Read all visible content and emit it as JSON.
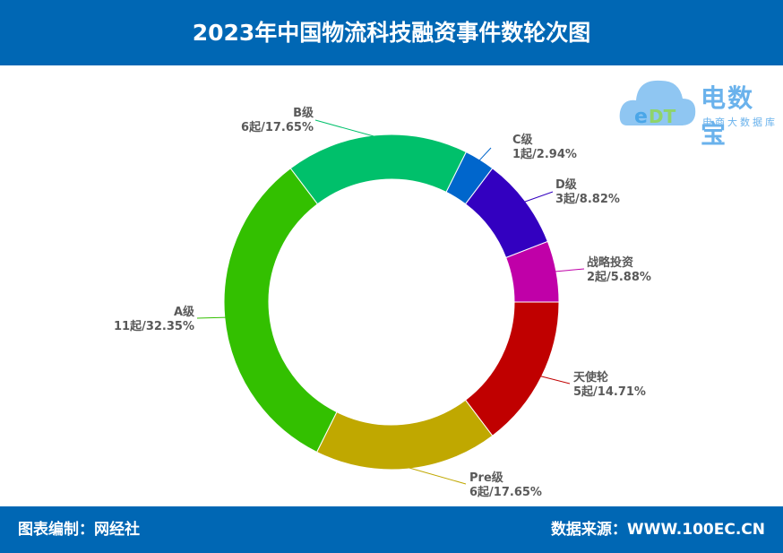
{
  "header": {
    "title": "2023年中国物流科技融资事件数轮次图"
  },
  "footer": {
    "left": "图表编制：网经社",
    "right": "数据来源：WWW.100EC.CN"
  },
  "logo": {
    "name": "电数宝",
    "sub": "电商大数据库",
    "mark": "eDT"
  },
  "chart_data": {
    "type": "pie",
    "donut": true,
    "title": "2023年中国物流科技融资事件数轮次图",
    "start_angle_deg": 90,
    "direction": "clockwise",
    "slices": [
      {
        "name": "天使轮",
        "value": 5,
        "label": "5起/14.71%",
        "color": "#c00000"
      },
      {
        "name": "Pre级",
        "value": 6,
        "label": "6起/17.65%",
        "color": "#c0a800"
      },
      {
        "name": "A级",
        "value": 11,
        "label": "11起/32.35%",
        "color": "#33c000"
      },
      {
        "name": "B级",
        "value": 6,
        "label": "6起/17.65%",
        "color": "#00c06b"
      },
      {
        "name": "C级",
        "value": 1,
        "label": "1起/2.94%",
        "color": "#0066cc"
      },
      {
        "name": "D级",
        "value": 3,
        "label": "3起/8.82%",
        "color": "#3300c0"
      },
      {
        "name": "战略投资",
        "value": 2,
        "label": "2起/5.88%",
        "color": "#c000a8"
      }
    ]
  }
}
